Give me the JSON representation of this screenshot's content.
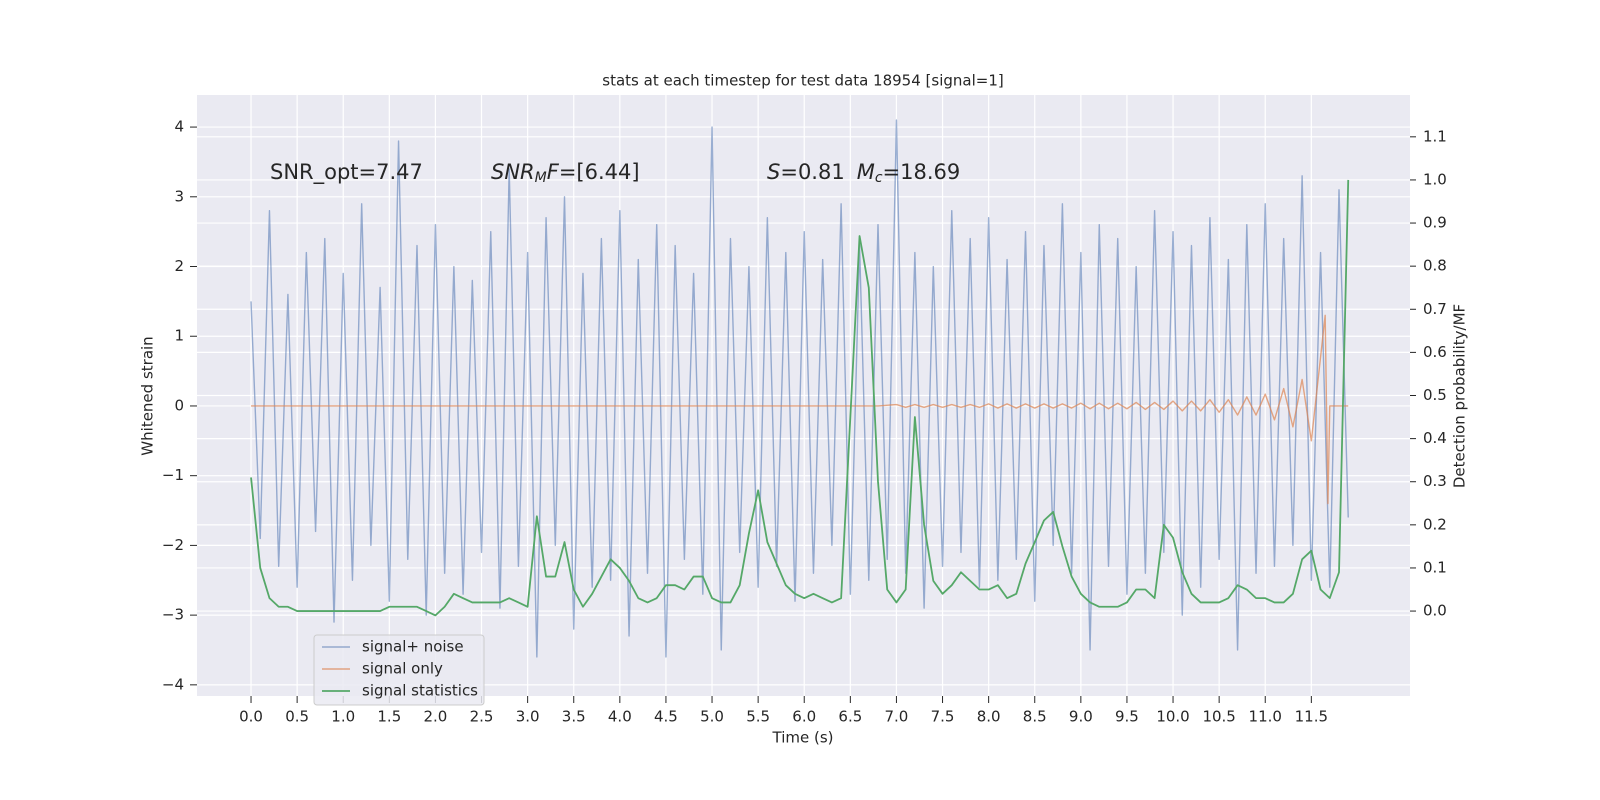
{
  "chart_data": {
    "type": "line",
    "title": "stats at each timestep for test data 18954 [signal=1]",
    "xlabel": "Time (s)",
    "ylabel": "Whitened strain",
    "y2label": "Detection probability/MF",
    "annotations": [
      [
        "SNR_opt=7.47"
      ],
      [
        "SNR",
        "M",
        "F",
        "=[6.44]"
      ],
      [
        "S",
        "=0.81",
        "M",
        "c",
        "=18.69"
      ]
    ],
    "xlim": [
      -0.586,
      12.57
    ],
    "ylim": [
      -4.16,
      4.46
    ],
    "y2lim": [
      -0.197,
      1.197
    ],
    "xticks": [
      {
        "value": 0,
        "label": "0.0"
      },
      0.5,
      {
        "value": 1,
        "label": "1.0"
      },
      1.5,
      {
        "value": 2,
        "label": "2.0"
      },
      2.5,
      {
        "value": 3,
        "label": "3.0"
      },
      3.5,
      {
        "value": 4,
        "label": "4.0"
      },
      4.5,
      {
        "value": 5,
        "label": "5.0"
      },
      5.5,
      {
        "value": 6,
        "label": "6.0"
      },
      6.5,
      {
        "value": 7,
        "label": "7.0"
      },
      7.5,
      {
        "value": 8,
        "label": "8.0"
      },
      8.5,
      {
        "value": 9,
        "label": "9.0"
      },
      9.5,
      {
        "value": 10,
        "label": "10.0"
      },
      10.5,
      {
        "value": 11,
        "label": "11.0"
      },
      11.5
    ],
    "yticks": [
      {
        "value": -4,
        "label": "−4"
      },
      {
        "value": -3,
        "label": "−3"
      },
      {
        "value": -2,
        "label": "−2"
      },
      {
        "value": -1,
        "label": "−1"
      },
      0,
      1,
      2,
      3,
      4
    ],
    "y2ticks": [
      {
        "value": 0,
        "label": "0.0"
      },
      0.1,
      0.2,
      0.3,
      0.4,
      0.5,
      0.6,
      0.7,
      0.8,
      0.9,
      {
        "value": 1,
        "label": "1.0"
      },
      1.1
    ],
    "grid": true,
    "legend": "lower left",
    "x": [
      0,
      0.1,
      0.2,
      0.3,
      0.4,
      0.5,
      0.6,
      0.7,
      0.8,
      0.9,
      1,
      1.1,
      1.2,
      1.3,
      1.4,
      1.5,
      1.6,
      1.7,
      1.8,
      1.9,
      2,
      2.1,
      2.2,
      2.3,
      2.4,
      2.5,
      2.6,
      2.7,
      2.8,
      2.9,
      3,
      3.1,
      3.2,
      3.3,
      3.4,
      3.5,
      3.6,
      3.7,
      3.8,
      3.9,
      4,
      4.1,
      4.2,
      4.3,
      4.4,
      4.5,
      4.6,
      4.7,
      4.8,
      4.9,
      5,
      5.1,
      5.2,
      5.3,
      5.4,
      5.5,
      5.6,
      5.7,
      5.8,
      5.9,
      6,
      6.1,
      6.2,
      6.3,
      6.4,
      6.5,
      6.6,
      6.7,
      6.8,
      6.9,
      7,
      7.1,
      7.2,
      7.3,
      7.4,
      7.5,
      7.6,
      7.7,
      7.8,
      7.9,
      8,
      8.1,
      8.2,
      8.3,
      8.4,
      8.5,
      8.6,
      8.7,
      8.8,
      8.9,
      9,
      9.1,
      9.2,
      9.3,
      9.4,
      9.5,
      9.6,
      9.7,
      9.8,
      9.9,
      10,
      10.1,
      10.2,
      10.3,
      10.4,
      10.5,
      10.6,
      10.7,
      10.8,
      10.9,
      11,
      11.1,
      11.2,
      11.3,
      11.4,
      11.5,
      11.6,
      11.7,
      11.8,
      11.9
    ],
    "series": [
      {
        "name": "signal+ noise",
        "color": "#4c72b0",
        "values": [
          1.5,
          -1.9,
          2.8,
          -2.3,
          1.6,
          -2.6,
          2.2,
          -1.8,
          2.4,
          -3.1,
          1.9,
          -2.5,
          2.9,
          -2.0,
          1.7,
          -2.8,
          3.8,
          -2.2,
          2.3,
          -3.0,
          2.6,
          -2.4,
          2.0,
          -2.7,
          1.8,
          -2.1,
          2.5,
          -2.9,
          3.4,
          -2.3,
          2.2,
          -3.6,
          2.7,
          -2.0,
          3.0,
          -3.2,
          1.9,
          -2.6,
          2.4,
          -2.5,
          2.8,
          -3.3,
          2.1,
          -2.4,
          2.6,
          -3.6,
          2.3,
          -2.2,
          1.9,
          -2.7,
          4.0,
          -3.5,
          2.4,
          -2.1,
          2.0,
          -2.6,
          2.7,
          -2.3,
          2.2,
          -2.8,
          2.5,
          -2.4,
          2.1,
          -2.0,
          2.9,
          -2.7,
          2.3,
          -2.5,
          2.6,
          -2.2,
          4.1,
          -2.4,
          2.2,
          -2.9,
          2.0,
          -2.3,
          2.8,
          -2.1,
          2.4,
          -2.6,
          2.7,
          -2.5,
          2.1,
          -2.2,
          2.5,
          -2.8,
          2.3,
          -2.0,
          2.9,
          -2.4,
          2.2,
          -3.5,
          2.6,
          -2.3,
          2.4,
          -2.7,
          2.0,
          -2.4,
          2.8,
          -2.1,
          2.5,
          -3.0,
          2.3,
          -2.6,
          2.7,
          -2.2,
          2.1,
          -3.5,
          2.6,
          -2.4,
          2.9,
          -2.3,
          2.4,
          -2.0,
          3.3,
          -2.5,
          2.2,
          -2.6,
          3.1,
          -1.6
        ]
      },
      {
        "name": "signal only",
        "color": "#dd8452",
        "x": [
          0,
          6.8,
          7,
          7.1,
          7.2,
          7.3,
          7.4,
          7.5,
          7.6,
          7.7,
          7.8,
          7.9,
          8,
          8.1,
          8.2,
          8.3,
          8.4,
          8.5,
          8.6,
          8.7,
          8.8,
          8.9,
          9,
          9.1,
          9.2,
          9.3,
          9.4,
          9.5,
          9.6,
          9.7,
          9.8,
          9.9,
          10,
          10.1,
          10.2,
          10.3,
          10.4,
          10.5,
          10.6,
          10.7,
          10.8,
          10.9,
          11,
          11.1,
          11.2,
          11.3,
          11.4,
          11.5,
          11.6,
          11.65,
          11.68,
          11.7,
          11.9
        ],
        "values": [
          0,
          0,
          0.02,
          -0.02,
          0.02,
          -0.02,
          0.02,
          -0.02,
          0.02,
          -0.02,
          0.02,
          -0.02,
          0.03,
          -0.03,
          0.03,
          -0.03,
          0.03,
          -0.03,
          0.03,
          -0.03,
          0.03,
          -0.03,
          0.04,
          -0.04,
          0.04,
          -0.04,
          0.04,
          -0.04,
          0.05,
          -0.05,
          0.05,
          -0.05,
          0.07,
          -0.07,
          0.07,
          -0.07,
          0.09,
          -0.09,
          0.09,
          -0.13,
          0.13,
          -0.13,
          0.17,
          -0.2,
          0.25,
          -0.3,
          0.38,
          -0.5,
          0.7,
          1.3,
          -1.4,
          0,
          0
        ]
      },
      {
        "name": "signal statistics",
        "color": "#55a868",
        "axis": "y2",
        "values": [
          0.31,
          0.1,
          0.03,
          0.01,
          0.01,
          0.0,
          0.0,
          0.0,
          0.0,
          0.0,
          0.0,
          0.0,
          0.0,
          0.0,
          0.0,
          0.01,
          0.01,
          0.01,
          0.01,
          0.0,
          -0.01,
          0.01,
          0.04,
          0.03,
          0.02,
          0.02,
          0.02,
          0.02,
          0.03,
          0.02,
          0.01,
          0.22,
          0.08,
          0.08,
          0.16,
          0.05,
          0.01,
          0.04,
          0.08,
          0.12,
          0.1,
          0.07,
          0.03,
          0.02,
          0.03,
          0.06,
          0.06,
          0.05,
          0.08,
          0.08,
          0.03,
          0.02,
          0.02,
          0.06,
          0.18,
          0.28,
          0.16,
          0.11,
          0.06,
          0.04,
          0.03,
          0.04,
          0.03,
          0.02,
          0.03,
          0.45,
          0.87,
          0.75,
          0.3,
          0.05,
          0.02,
          0.05,
          0.45,
          0.2,
          0.07,
          0.04,
          0.06,
          0.09,
          0.07,
          0.05,
          0.05,
          0.06,
          0.03,
          0.04,
          0.11,
          0.16,
          0.21,
          0.23,
          0.15,
          0.08,
          0.04,
          0.02,
          0.01,
          0.01,
          0.01,
          0.02,
          0.05,
          0.05,
          0.03,
          0.2,
          0.17,
          0.09,
          0.04,
          0.02,
          0.02,
          0.02,
          0.03,
          0.06,
          0.05,
          0.03,
          0.03,
          0.02,
          0.02,
          0.04,
          0.12,
          0.14,
          0.05,
          0.03,
          0.09,
          1.0
        ]
      }
    ]
  }
}
